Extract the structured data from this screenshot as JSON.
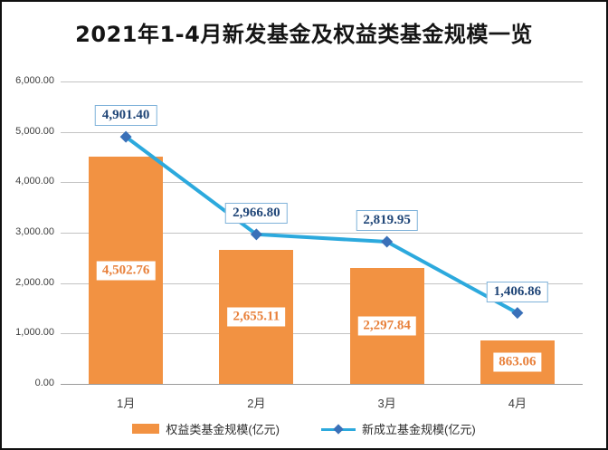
{
  "title": "2021年1-4月新发基金及权益类基金规模一览",
  "colors": {
    "bar": "#f29242",
    "bar_label_text": "#e8813c",
    "line": "#2ca9dd",
    "marker": "#3a70b8",
    "line_label_text": "#1f4577",
    "line_label_border": "#7fb2d9",
    "gridline": "#c3c3c3",
    "axis_text": "#3d3d3d"
  },
  "chart_data": {
    "type": "bar",
    "combo": "bar + line",
    "title": "2021年1-4月新发基金及权益类基金规模一览",
    "categories": [
      "1月",
      "2月",
      "3月",
      "4月"
    ],
    "series": [
      {
        "name": "权益类基金规模(亿元)",
        "type": "bar",
        "values": [
          4502.76,
          2655.11,
          2297.84,
          863.06
        ],
        "labels": [
          "4,502.76",
          "2,655.11",
          "2,297.84",
          "863.06"
        ]
      },
      {
        "name": "新成立基金规模(亿元)",
        "type": "line",
        "values": [
          4901.4,
          2966.8,
          2819.95,
          1406.86
        ],
        "labels": [
          "4,901.40",
          "2,966.80",
          "2,819.95",
          "1,406.86"
        ]
      }
    ],
    "xlabel": "",
    "ylabel": "",
    "ylim": [
      0,
      6000
    ],
    "ytick_step": 1000,
    "ytick_labels": [
      "0.00",
      "1,000.00",
      "2,000.00",
      "3,000.00",
      "4,000.00",
      "5,000.00",
      "6,000.00"
    ],
    "grid": true,
    "legend_position": "bottom"
  }
}
